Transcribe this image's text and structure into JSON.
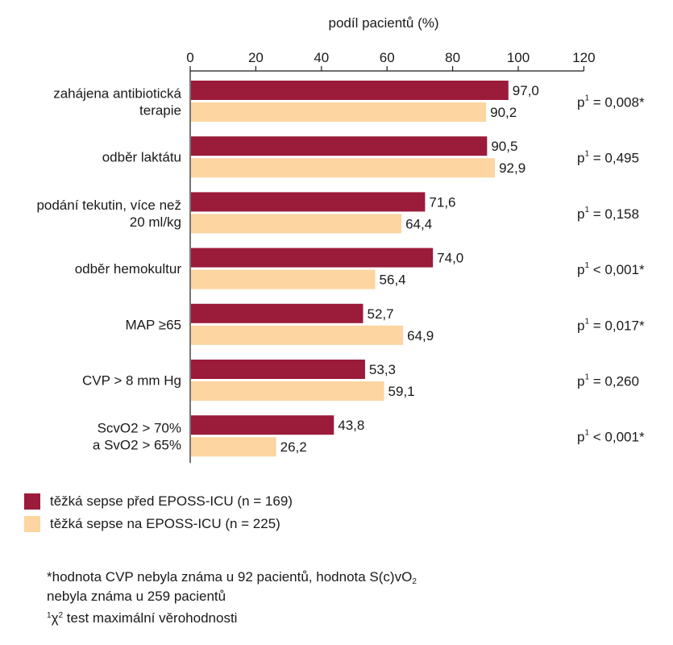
{
  "colors": {
    "series1": "#9b1b3a",
    "series2": "#fdd5a1"
  },
  "chart_data": {
    "type": "bar",
    "orientation": "horizontal",
    "xlabel": "podíl pacientů (%)",
    "xlim": [
      0,
      120
    ],
    "xticks": [
      "0",
      "20",
      "40",
      "60",
      "80",
      "100",
      "120"
    ],
    "categories": [
      [
        "zahájena antibiotická",
        "terapie"
      ],
      [
        "odběr laktátu"
      ],
      [
        "podání tekutin, více než",
        "20 ml/kg"
      ],
      [
        "odběr hemokultur"
      ],
      [
        "MAP ≥65"
      ],
      [
        "CVP > 8 mm Hg"
      ],
      [
        "ScvO2 > 70%",
        "a SvO2 > 65%"
      ]
    ],
    "series": [
      {
        "name": "těžká sepse před EPOSS-ICU (n = 169)",
        "values": [
          97.0,
          90.5,
          71.6,
          74.0,
          52.7,
          53.3,
          43.8
        ],
        "labels": [
          "97,0",
          "90,5",
          "71,6",
          "74,0",
          "52,7",
          "53,3",
          "43,8"
        ]
      },
      {
        "name": "těžká sepse na EPOSS-ICU (n = 225)",
        "values": [
          90.2,
          92.9,
          64.4,
          56.4,
          64.9,
          59.1,
          26.2
        ],
        "labels": [
          "90,2",
          "92,9",
          "64,4",
          "56,4",
          "64,9",
          "59,1",
          "26,2"
        ]
      }
    ],
    "pvalues": [
      {
        "prefix": "p",
        "sup": "1",
        "text": " = 0,008*"
      },
      {
        "prefix": "p",
        "sup": "1",
        "text": " = 0,495"
      },
      {
        "prefix": "p",
        "sup": "1",
        "text": " = 0,158"
      },
      {
        "prefix": "p",
        "sup": "1",
        "text": " < 0,001*"
      },
      {
        "prefix": "p",
        "sup": "1",
        "text": " = 0,017*"
      },
      {
        "prefix": "p",
        "sup": "1",
        "text": " = 0,260"
      },
      {
        "prefix": "p",
        "sup": "1",
        "text": " < 0,001*"
      }
    ],
    "legend_placement": "bottom-left"
  },
  "footnotes": {
    "line1": "*hodnota CVP nebyla známa u 92 pacientů, hodnota S(c)vO",
    "line1_sub": "2",
    "line2": "nebyla známa u 259 pacientů",
    "line3_sup": "1",
    "line3": "χ",
    "line3_sup2": "2",
    "line3_rest": " test maximální věrohodnosti"
  }
}
